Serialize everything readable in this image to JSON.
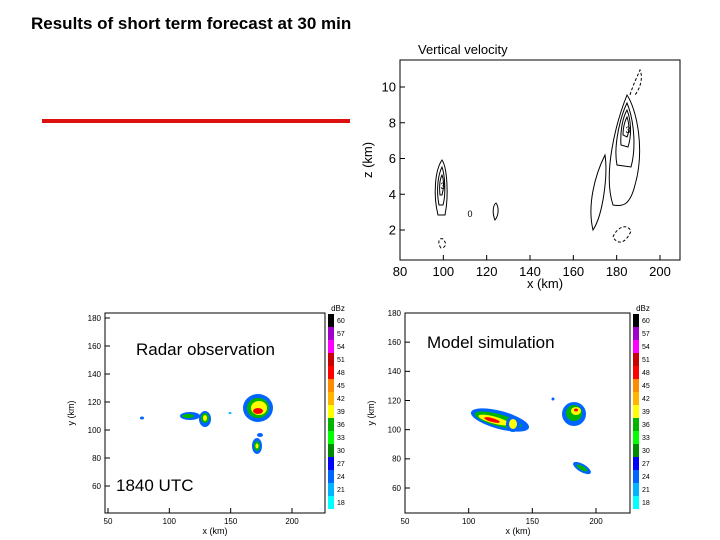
{
  "slide": {
    "title": "Results of short term forecast at 30 min"
  },
  "vertical_velocity": {
    "title": "Vertical velocity",
    "xlabel": "x (km)",
    "ylabel": "z (km)",
    "x_ticks": [
      "80",
      "100",
      "120",
      "140",
      "160",
      "180",
      "200"
    ],
    "y_ticks": [
      "2",
      "4",
      "6",
      "8",
      "10"
    ],
    "contour_labels": [
      "3",
      "0",
      "3"
    ]
  },
  "radar": {
    "label": "Radar observation",
    "time_label": "1840 UTC",
    "xlabel": "x (km)",
    "ylabel": "y (km)",
    "x_ticks": [
      "50",
      "100",
      "150",
      "200"
    ],
    "y_ticks": [
      "60",
      "80",
      "100",
      "120",
      "140",
      "160",
      "180"
    ]
  },
  "model": {
    "label": "Model simulation",
    "xlabel": "x (km)",
    "ylabel": "y (km)",
    "x_ticks": [
      "50",
      "100",
      "150",
      "200"
    ],
    "y_ticks": [
      "60",
      "80",
      "100",
      "120",
      "140",
      "160",
      "180"
    ]
  },
  "colorbar": {
    "unit": "dBz",
    "levels": [
      "60",
      "57",
      "54",
      "51",
      "48",
      "45",
      "42",
      "39",
      "36",
      "33",
      "30",
      "27",
      "24",
      "21",
      "18"
    ],
    "colors": [
      "#000000",
      "#a000c8",
      "#ff00ff",
      "#c80000",
      "#ff0000",
      "#ff8c00",
      "#ffb400",
      "#ffff00",
      "#00b400",
      "#00ff00",
      "#008c00",
      "#0000ff",
      "#0064ff",
      "#00b4ff",
      "#00ffff"
    ]
  },
  "accent_line_color": "#dd1111"
}
